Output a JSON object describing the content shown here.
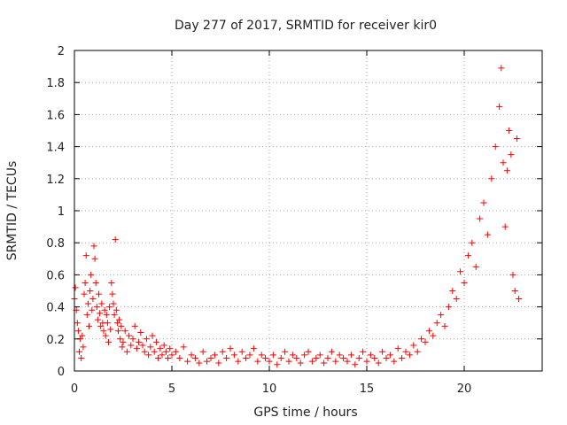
{
  "chart_data": {
    "type": "scatter",
    "title": "Day 277 of 2017, SRMTID for receiver kir0",
    "xlabel": "GPS time / hours",
    "ylabel": "SRMTID / TECUs",
    "xlim": [
      0,
      24
    ],
    "ylim": [
      0,
      2
    ],
    "x_ticks": [
      0,
      5,
      10,
      15,
      20
    ],
    "x_tick_labels": [
      "0",
      "5",
      "10",
      "15",
      "20"
    ],
    "y_ticks": [
      0,
      0.2,
      0.4,
      0.6,
      0.8,
      1.0,
      1.2,
      1.4,
      1.6,
      1.8,
      2.0
    ],
    "y_tick_labels": [
      "0",
      "0.2",
      "0.4",
      "0.6",
      "0.8",
      "1",
      "1.2",
      "1.4",
      "1.6",
      "1.8",
      "2"
    ],
    "grid": true,
    "marker": "+",
    "marker_color": "#ff0000",
    "series": [
      {
        "name": "SRMTID",
        "points": [
          [
            0.0,
            0.45
          ],
          [
            0.05,
            0.52
          ],
          [
            0.1,
            0.38
          ],
          [
            0.15,
            0.3
          ],
          [
            0.2,
            0.25
          ],
          [
            0.25,
            0.12
          ],
          [
            0.3,
            0.2
          ],
          [
            0.35,
            0.08
          ],
          [
            0.4,
            0.22
          ],
          [
            0.45,
            0.15
          ],
          [
            0.5,
            0.48
          ],
          [
            0.55,
            0.55
          ],
          [
            0.6,
            0.72
          ],
          [
            0.65,
            0.35
          ],
          [
            0.7,
            0.42
          ],
          [
            0.75,
            0.28
          ],
          [
            0.8,
            0.5
          ],
          [
            0.85,
            0.6
          ],
          [
            0.9,
            0.38
          ],
          [
            0.95,
            0.45
          ],
          [
            1.0,
            0.78
          ],
          [
            1.05,
            0.7
          ],
          [
            1.1,
            0.55
          ],
          [
            1.15,
            0.4
          ],
          [
            1.2,
            0.32
          ],
          [
            1.25,
            0.48
          ],
          [
            1.3,
            0.36
          ],
          [
            1.35,
            0.28
          ],
          [
            1.4,
            0.42
          ],
          [
            1.45,
            0.3
          ],
          [
            1.5,
            0.25
          ],
          [
            1.55,
            0.38
          ],
          [
            1.6,
            0.22
          ],
          [
            1.65,
            0.35
          ],
          [
            1.7,
            0.3
          ],
          [
            1.75,
            0.18
          ],
          [
            1.8,
            0.4
          ],
          [
            1.85,
            0.26
          ],
          [
            1.9,
            0.55
          ],
          [
            1.95,
            0.48
          ],
          [
            2.0,
            0.42
          ],
          [
            2.05,
            0.35
          ],
          [
            2.1,
            0.82
          ],
          [
            2.15,
            0.38
          ],
          [
            2.2,
            0.3
          ],
          [
            2.25,
            0.25
          ],
          [
            2.3,
            0.32
          ],
          [
            2.35,
            0.2
          ],
          [
            2.4,
            0.28
          ],
          [
            2.45,
            0.15
          ],
          [
            2.5,
            0.18
          ],
          [
            2.6,
            0.25
          ],
          [
            2.7,
            0.12
          ],
          [
            2.8,
            0.22
          ],
          [
            2.9,
            0.16
          ],
          [
            3.0,
            0.2
          ],
          [
            3.1,
            0.28
          ],
          [
            3.2,
            0.14
          ],
          [
            3.3,
            0.18
          ],
          [
            3.4,
            0.24
          ],
          [
            3.5,
            0.16
          ],
          [
            3.6,
            0.12
          ],
          [
            3.7,
            0.2
          ],
          [
            3.8,
            0.1
          ],
          [
            3.9,
            0.15
          ],
          [
            4.0,
            0.22
          ],
          [
            4.1,
            0.12
          ],
          [
            4.2,
            0.18
          ],
          [
            4.3,
            0.08
          ],
          [
            4.4,
            0.14
          ],
          [
            4.5,
            0.1
          ],
          [
            4.6,
            0.16
          ],
          [
            4.7,
            0.12
          ],
          [
            4.8,
            0.08
          ],
          [
            4.9,
            0.14
          ],
          [
            5.0,
            0.1
          ],
          [
            5.2,
            0.12
          ],
          [
            5.4,
            0.08
          ],
          [
            5.6,
            0.15
          ],
          [
            5.8,
            0.06
          ],
          [
            6.0,
            0.1
          ],
          [
            6.2,
            0.08
          ],
          [
            6.4,
            0.05
          ],
          [
            6.6,
            0.12
          ],
          [
            6.8,
            0.06
          ],
          [
            7.0,
            0.08
          ],
          [
            7.2,
            0.1
          ],
          [
            7.4,
            0.05
          ],
          [
            7.6,
            0.12
          ],
          [
            7.8,
            0.08
          ],
          [
            8.0,
            0.14
          ],
          [
            8.2,
            0.1
          ],
          [
            8.4,
            0.06
          ],
          [
            8.6,
            0.12
          ],
          [
            8.8,
            0.08
          ],
          [
            9.0,
            0.1
          ],
          [
            9.2,
            0.14
          ],
          [
            9.4,
            0.06
          ],
          [
            9.6,
            0.1
          ],
          [
            9.8,
            0.08
          ],
          [
            10.0,
            0.06
          ],
          [
            10.2,
            0.1
          ],
          [
            10.4,
            0.04
          ],
          [
            10.6,
            0.08
          ],
          [
            10.8,
            0.12
          ],
          [
            11.0,
            0.06
          ],
          [
            11.2,
            0.1
          ],
          [
            11.4,
            0.08
          ],
          [
            11.6,
            0.05
          ],
          [
            11.8,
            0.1
          ],
          [
            12.0,
            0.12
          ],
          [
            12.2,
            0.06
          ],
          [
            12.4,
            0.08
          ],
          [
            12.6,
            0.1
          ],
          [
            12.8,
            0.05
          ],
          [
            13.0,
            0.08
          ],
          [
            13.2,
            0.12
          ],
          [
            13.4,
            0.06
          ],
          [
            13.6,
            0.1
          ],
          [
            13.8,
            0.08
          ],
          [
            14.0,
            0.06
          ],
          [
            14.2,
            0.1
          ],
          [
            14.4,
            0.04
          ],
          [
            14.6,
            0.08
          ],
          [
            14.8,
            0.12
          ],
          [
            15.0,
            0.06
          ],
          [
            15.2,
            0.1
          ],
          [
            15.4,
            0.08
          ],
          [
            15.6,
            0.05
          ],
          [
            15.8,
            0.12
          ],
          [
            16.0,
            0.08
          ],
          [
            16.2,
            0.1
          ],
          [
            16.4,
            0.06
          ],
          [
            16.6,
            0.14
          ],
          [
            16.8,
            0.08
          ],
          [
            17.0,
            0.12
          ],
          [
            17.2,
            0.1
          ],
          [
            17.4,
            0.16
          ],
          [
            17.6,
            0.12
          ],
          [
            17.8,
            0.2
          ],
          [
            18.0,
            0.18
          ],
          [
            18.2,
            0.25
          ],
          [
            18.4,
            0.22
          ],
          [
            18.6,
            0.3
          ],
          [
            18.8,
            0.35
          ],
          [
            19.0,
            0.28
          ],
          [
            19.2,
            0.4
          ],
          [
            19.4,
            0.5
          ],
          [
            19.6,
            0.45
          ],
          [
            19.8,
            0.62
          ],
          [
            20.0,
            0.55
          ],
          [
            20.2,
            0.72
          ],
          [
            20.4,
            0.8
          ],
          [
            20.6,
            0.65
          ],
          [
            20.8,
            0.95
          ],
          [
            21.0,
            1.05
          ],
          [
            21.2,
            0.85
          ],
          [
            21.4,
            1.2
          ],
          [
            21.6,
            1.4
          ],
          [
            21.8,
            1.65
          ],
          [
            21.9,
            1.89
          ],
          [
            22.0,
            1.3
          ],
          [
            22.1,
            0.9
          ],
          [
            22.2,
            1.25
          ],
          [
            22.3,
            1.5
          ],
          [
            22.4,
            1.35
          ],
          [
            22.5,
            0.6
          ],
          [
            22.6,
            0.5
          ],
          [
            22.7,
            1.45
          ],
          [
            22.8,
            0.45
          ]
        ]
      }
    ]
  }
}
